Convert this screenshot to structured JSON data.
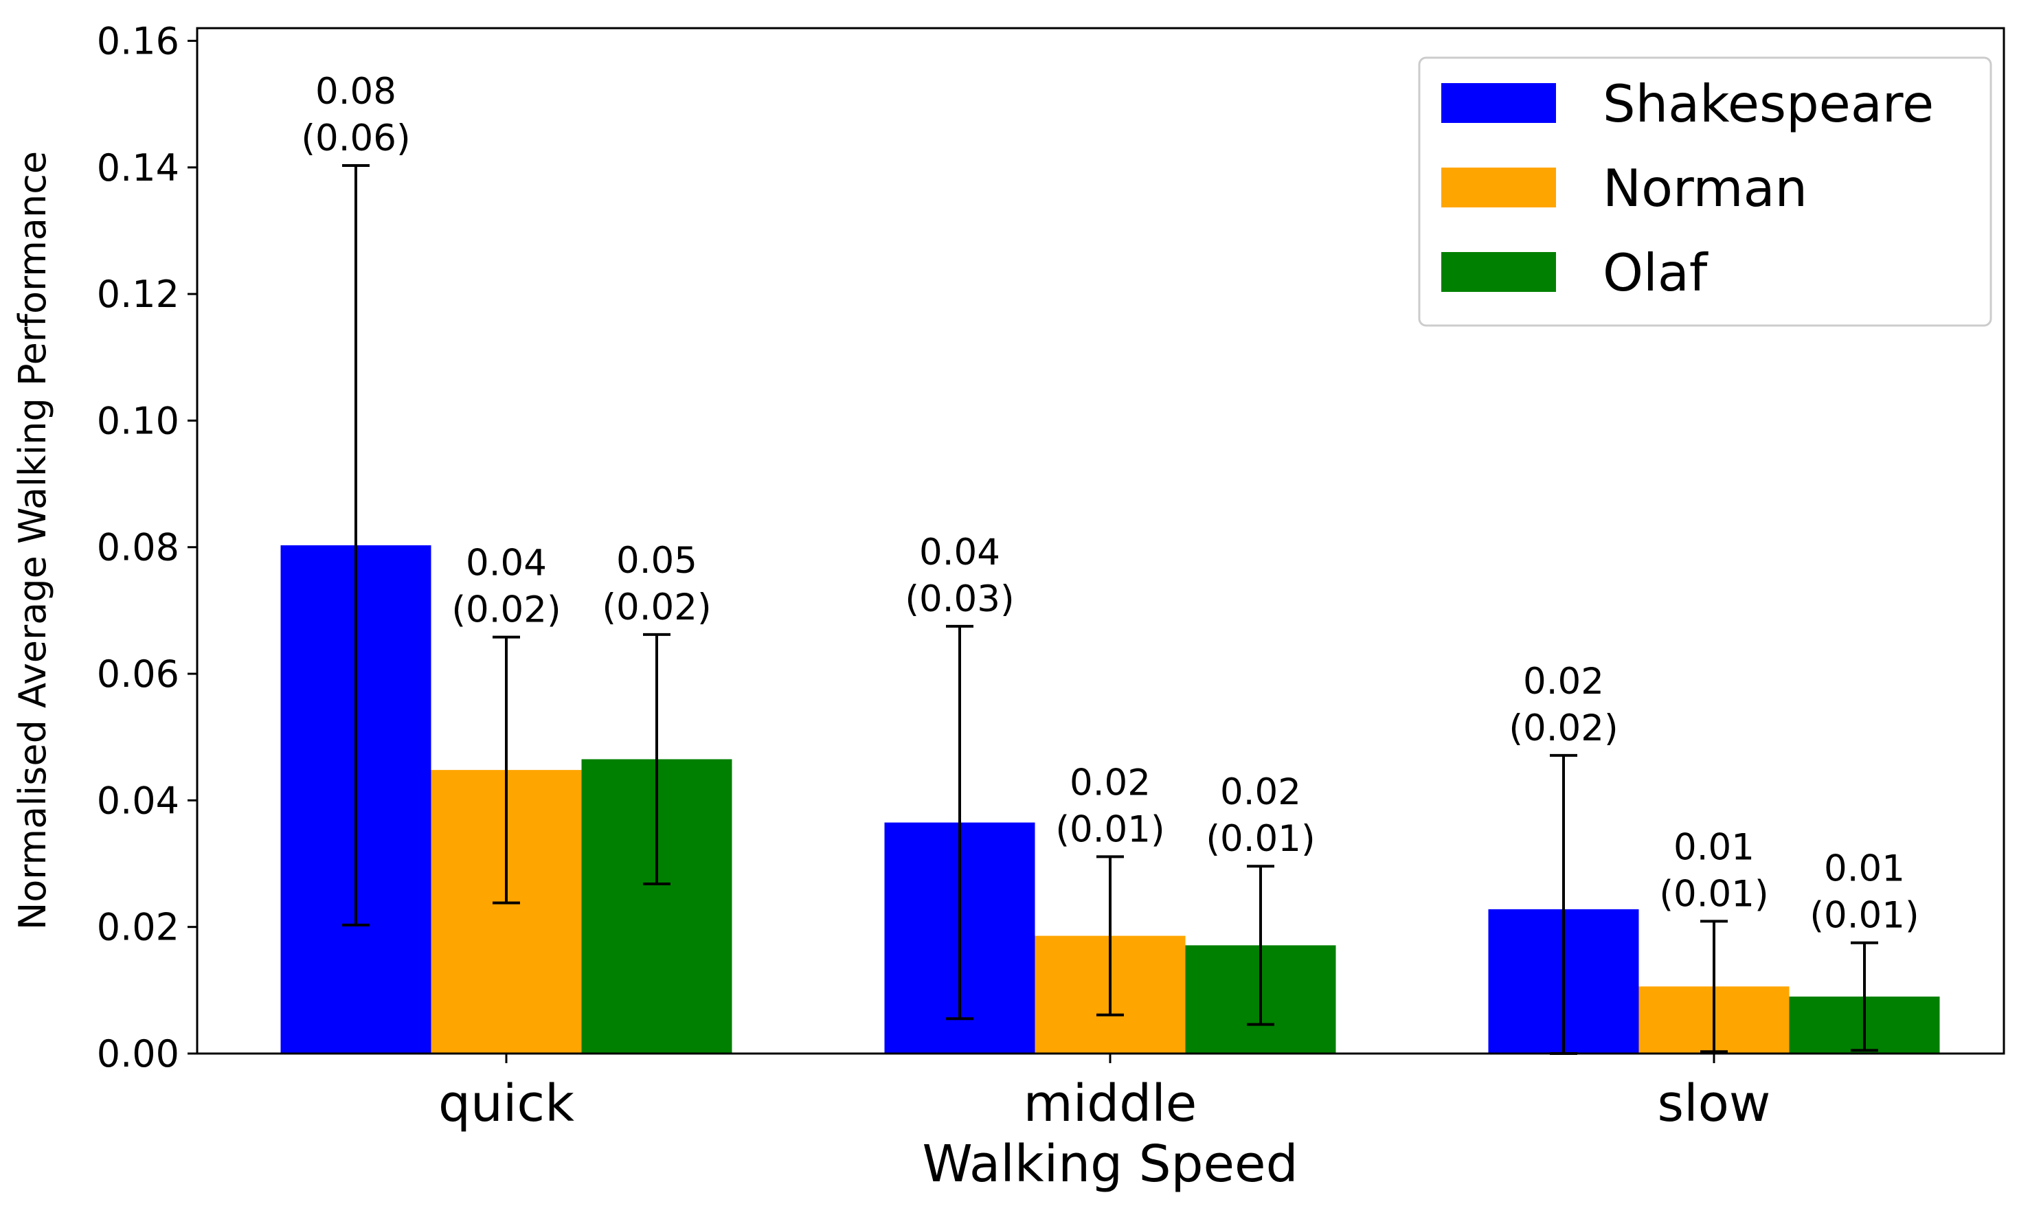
{
  "chart_data": {
    "type": "bar",
    "title": "",
    "xlabel": "Walking Speed",
    "ylabel": "Normalised Average Walking Performance",
    "categories": [
      "quick",
      "middle",
      "slow"
    ],
    "ylim": [
      0,
      0.162
    ],
    "yticks": [
      0.0,
      0.02,
      0.04,
      0.06,
      0.08,
      0.1,
      0.12,
      0.14,
      0.16
    ],
    "ytick_labels": [
      "0.00",
      "0.02",
      "0.04",
      "0.06",
      "0.08",
      "0.10",
      "0.12",
      "0.14",
      "0.16"
    ],
    "grid": false,
    "legend_position": "top-right",
    "series": [
      {
        "name": "Shakespeare",
        "color": "#0000ff",
        "values": [
          0.0803,
          0.0365,
          0.0228
        ],
        "errors": [
          0.06,
          0.031,
          0.0243
        ],
        "labels": [
          [
            "0.08",
            "(0.06)"
          ],
          [
            "0.04",
            "(0.03)"
          ],
          [
            "0.02",
            "(0.02)"
          ]
        ]
      },
      {
        "name": "Norman",
        "color": "#ffa500",
        "values": [
          0.0448,
          0.0186,
          0.0106
        ],
        "errors": [
          0.021,
          0.0125,
          0.0103
        ],
        "labels": [
          [
            "0.04",
            "(0.02)"
          ],
          [
            "0.02",
            "(0.01)"
          ],
          [
            "0.01",
            "(0.01)"
          ]
        ]
      },
      {
        "name": "Olaf",
        "color": "#008000",
        "values": [
          0.0465,
          0.0171,
          0.009
        ],
        "errors": [
          0.0197,
          0.0125,
          0.0085
        ],
        "labels": [
          [
            "0.05",
            "(0.02)"
          ],
          [
            "0.02",
            "(0.01)"
          ],
          [
            "0.01",
            "(0.01)"
          ]
        ]
      }
    ]
  }
}
